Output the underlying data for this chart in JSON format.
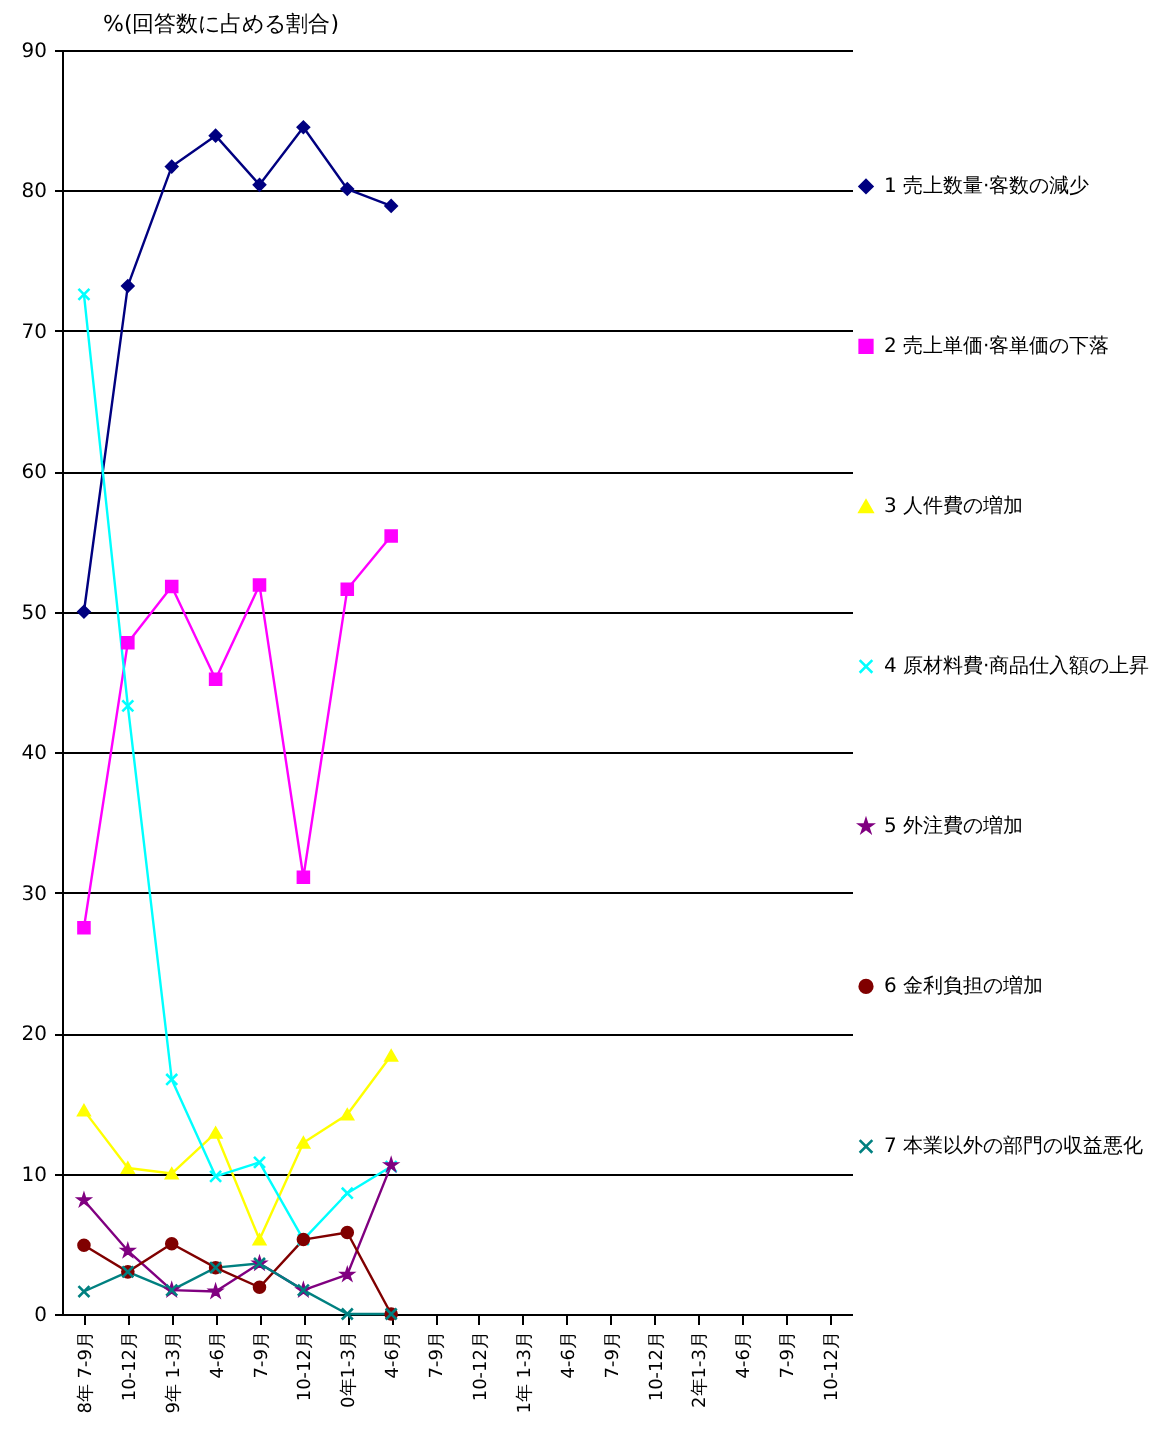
{
  "chart_data": {
    "type": "line",
    "ylabel": "%(回答数に占める割合)",
    "categories": [
      "8年 7-9月",
      "10-12月",
      "9年 1-3月",
      "4-6月",
      "7-9月",
      "10-12月",
      "0年1-3月",
      "4-6月",
      "7-9月",
      "10-12月",
      "1年 1-3月",
      "4-6月",
      "7-9月",
      "10-12月",
      "2年1-3月",
      "4-6月",
      "7-9月",
      "10-12月"
    ],
    "series": [
      {
        "name": "1 売上数量·客数の減少",
        "color": "#000080",
        "marker": "diamond",
        "values": [
          50,
          73.2,
          81.7,
          83.9,
          80.4,
          84.5,
          80.1,
          78.9,
          null,
          null,
          null,
          null,
          null,
          null,
          null,
          null,
          null,
          null
        ]
      },
      {
        "name": "2 売上単価·客単価の下落",
        "color": "#ff00ff",
        "marker": "square",
        "values": [
          27.5,
          47.8,
          51.8,
          45.2,
          51.9,
          31.1,
          51.6,
          55.4,
          null,
          null,
          null,
          null,
          null,
          null,
          null,
          null,
          null,
          null
        ]
      },
      {
        "name": "3 人件費の増加",
        "color": "#ffff00",
        "marker": "triangle",
        "values": [
          14.5,
          10.4,
          10.0,
          12.9,
          5.3,
          12.2,
          14.2,
          18.4,
          null,
          null,
          null,
          null,
          null,
          null,
          null,
          null,
          null,
          null
        ]
      },
      {
        "name": "4 原材料費·商品仕入額の上昇",
        "color": "#00ffff",
        "marker": "cross",
        "values": [
          72.6,
          43.3,
          16.7,
          9.8,
          10.8,
          5.3,
          8.6,
          10.5,
          null,
          null,
          null,
          null,
          null,
          null,
          null,
          null,
          null,
          null
        ]
      },
      {
        "name": "5 外注費の増加",
        "color": "#800080",
        "marker": "star",
        "values": [
          8.1,
          4.5,
          1.7,
          1.6,
          3.6,
          1.7,
          2.8,
          10.6,
          null,
          null,
          null,
          null,
          null,
          null,
          null,
          null,
          null,
          null
        ]
      },
      {
        "name": "6 金利負担の増加",
        "color": "#800000",
        "marker": "circle",
        "values": [
          4.9,
          3.0,
          5.0,
          3.3,
          1.9,
          5.3,
          5.8,
          0,
          null,
          null,
          null,
          null,
          null,
          null,
          null,
          null,
          null,
          null
        ]
      },
      {
        "name": "7 本業以外の部門の収益悪化",
        "color": "#008080",
        "marker": "cross",
        "values": [
          1.6,
          3.0,
          1.7,
          3.3,
          3.6,
          1.7,
          0,
          0,
          null,
          null,
          null,
          null,
          null,
          null,
          null,
          null,
          null,
          null
        ]
      }
    ],
    "ylim": [
      0,
      90
    ],
    "yticks": [
      0,
      10,
      20,
      30,
      40,
      50,
      60,
      70,
      80,
      90
    ],
    "grid": "y",
    "legend": "right"
  }
}
